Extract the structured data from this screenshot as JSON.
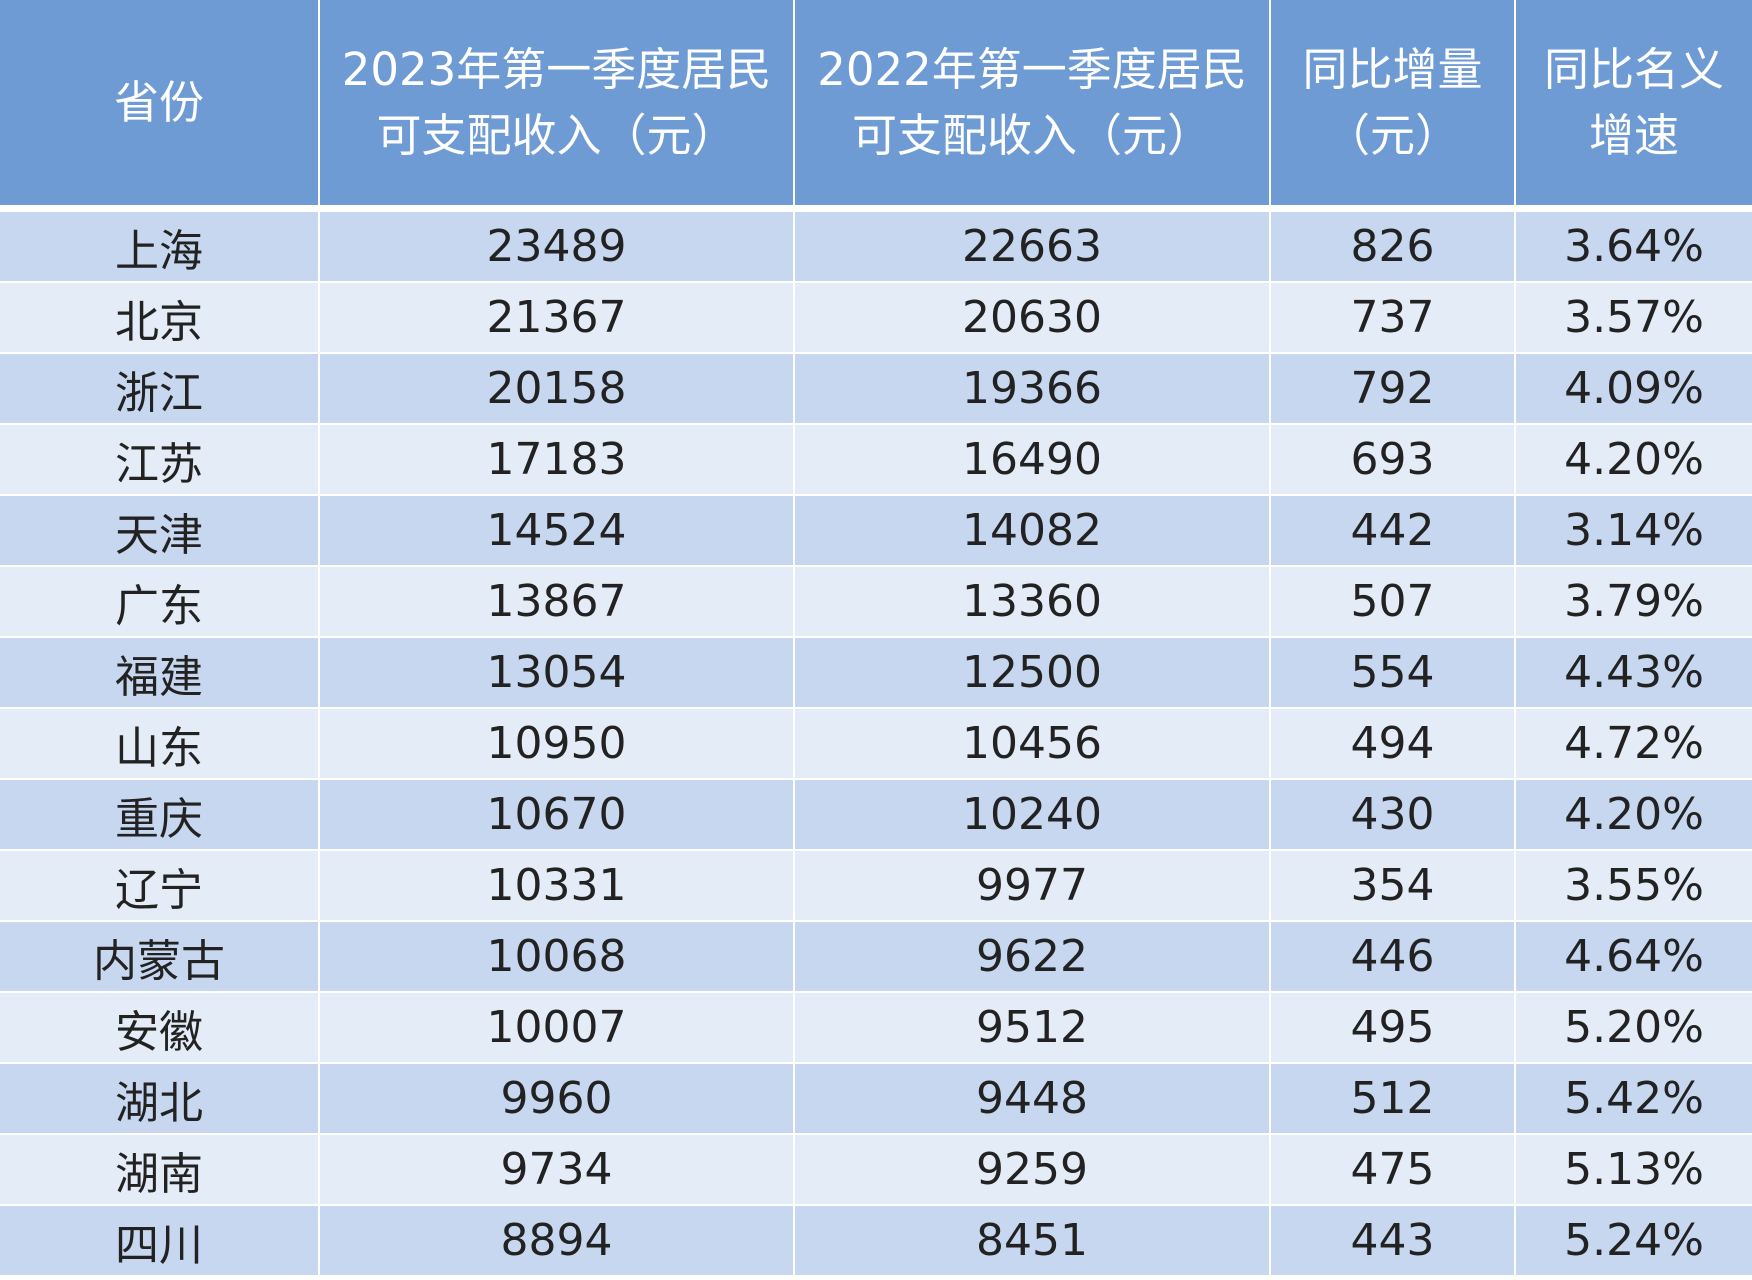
{
  "table": {
    "header": [
      [
        "省份"
      ],
      [
        "2023年第一季度居民",
        "可支配收入（元）"
      ],
      [
        "2022年第一季度居民",
        "可支配收入（元）"
      ],
      [
        "同比增量",
        "（元）"
      ],
      [
        "同比名义",
        "增速"
      ]
    ],
    "rows": [
      [
        "上海",
        23489,
        22663,
        826,
        "3.64%"
      ],
      [
        "北京",
        21367,
        20630,
        737,
        "3.57%"
      ],
      [
        "浙江",
        20158,
        19366,
        792,
        "4.09%"
      ],
      [
        "江苏",
        17183,
        16490,
        693,
        "4.20%"
      ],
      [
        "天津",
        14524,
        14082,
        442,
        "3.14%"
      ],
      [
        "广东",
        13867,
        13360,
        507,
        "3.79%"
      ],
      [
        "福建",
        13054,
        12500,
        554,
        "4.43%"
      ],
      [
        "山东",
        10950,
        10456,
        494,
        "4.72%"
      ],
      [
        "重庆",
        10670,
        10240,
        430,
        "4.20%"
      ],
      [
        "辽宁",
        10331,
        9977,
        354,
        "3.55%"
      ],
      [
        "内蒙古",
        10068,
        9622,
        446,
        "4.64%"
      ],
      [
        "安徽",
        10007,
        9512,
        495,
        "5.20%"
      ],
      [
        "湖北",
        9960,
        9448,
        512,
        "5.42%"
      ],
      [
        "湖南",
        9734,
        9259,
        475,
        "5.13%"
      ],
      [
        "四川",
        8894,
        8451,
        443,
        "5.24%"
      ]
    ]
  }
}
